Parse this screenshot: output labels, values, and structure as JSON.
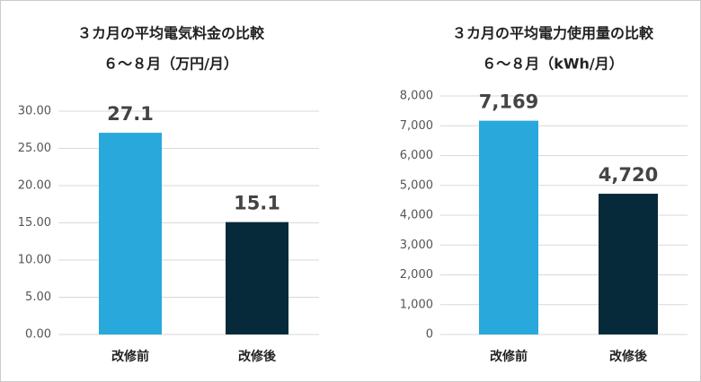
{
  "chart_data": [
    {
      "type": "bar",
      "title": "３カ月の平均電気料金の比較",
      "subtitle": "６～８月（万円/月）",
      "categories": [
        "改修前",
        "改修後"
      ],
      "values": [
        27.1,
        15.1
      ],
      "colors": [
        "#29a8dc",
        "#062a3a"
      ],
      "ylim": [
        0,
        30
      ],
      "yticks": [
        {
          "value": 0,
          "label": "0.00"
        },
        {
          "value": 5,
          "label": "5.00"
        },
        {
          "value": 10,
          "label": "10.00"
        },
        {
          "value": 15,
          "label": "15.00"
        },
        {
          "value": 20,
          "label": "20.00"
        },
        {
          "value": 25,
          "label": "25.00"
        },
        {
          "value": 30,
          "label": "30.00"
        }
      ],
      "grid": true
    },
    {
      "type": "bar",
      "title": "３カ月の平均電力使用量の比較",
      "subtitle": "６～８月（kWh/月）",
      "categories": [
        "改修前",
        "改修後"
      ],
      "values": [
        7169,
        4720
      ],
      "value_labels": [
        "7,169",
        "4,720"
      ],
      "colors": [
        "#29a8dc",
        "#062a3a"
      ],
      "ylim": [
        0,
        8000
      ],
      "yticks": [
        0,
        {
          "value": 1000,
          "label": "1,000"
        },
        {
          "value": 2000,
          "label": "2,000"
        },
        {
          "value": 3000,
          "label": "3,000"
        },
        {
          "value": 4000,
          "label": "4,000"
        },
        {
          "value": 5000,
          "label": "5,000"
        },
        {
          "value": 6000,
          "label": "6,000"
        },
        {
          "value": 7000,
          "label": "7,000"
        },
        {
          "value": 8000,
          "label": "8,000"
        }
      ],
      "grid": true
    }
  ]
}
